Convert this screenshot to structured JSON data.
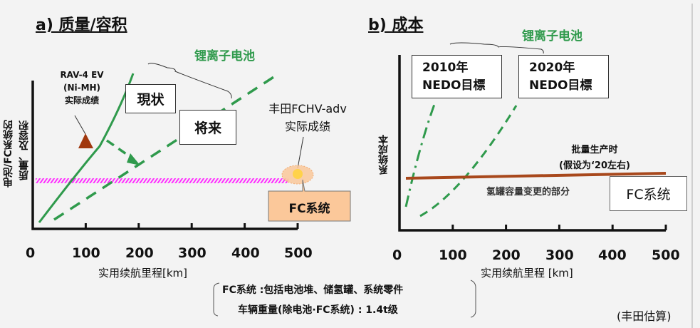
{
  "left": {
    "title": "a) 质量/容积",
    "series_label": "锂离子电池",
    "y_label_line1": "电池/FC系统的",
    "y_label_line2": "质量、及容积",
    "rav_line1": "RAV-4 EV",
    "rav_line2": "(Ni-MH)",
    "rav_line3": "实际成绩",
    "current_box": "現状",
    "future_box": "将来",
    "fchv_line1": "丰田FCHV-adv",
    "fchv_line2": "实际成绩",
    "fc_box": "FC系统",
    "x_ticks": [
      "0",
      "100",
      "200",
      "300",
      "400",
      "500"
    ],
    "x_label": "实用续航里程[km]",
    "colors": {
      "li_ion": "#2f9a4c",
      "rav_marker": "#a0380e",
      "fc_band": "#ff33ff",
      "fc_box": "#fbc89a"
    }
  },
  "right": {
    "title": "b) 成本",
    "series_label": "锂离子电池",
    "y_label": "系统成本",
    "box_2010_line1": "2010年",
    "box_2010_line2": "NEDO目標",
    "box_2020_line1": "2020年",
    "box_2020_line2": "NEDO目標",
    "mass_prod_line1": "批量生产时",
    "mass_prod_line2": "(假设为‘20左右)",
    "tank_note": "氢罐容量变更的部分",
    "fc_box": "FC系统",
    "x_ticks": [
      "0",
      "100",
      "200",
      "300",
      "400",
      "500"
    ],
    "x_label": "实用续航里程 [km]",
    "colors": {
      "li_ion": "#2f9a4c",
      "fc_cost": "#a8481c"
    }
  },
  "footnote": {
    "line1": "FC系统 :包括电池堆、储氢罐、系统零件",
    "line2": "车辆重量(除电池·FC系统) : 1.4t级",
    "source": "(丰田估算)"
  }
}
